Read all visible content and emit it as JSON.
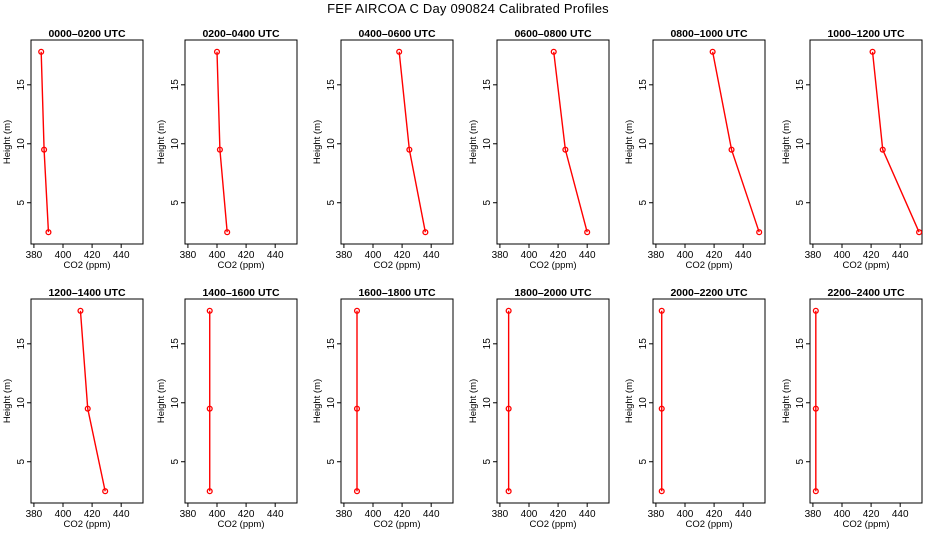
{
  "title": "FEF AIRCOA C  Day 090824  Calibrated Profiles",
  "chart_data": {
    "type": "line",
    "xlabel": "CO2 (ppm)",
    "ylabel": "Height (m)",
    "xlim": [
      378,
      455
    ],
    "ylim": [
      1.5,
      18.8
    ],
    "xticks": [
      "380",
      "400",
      "420",
      "440"
    ],
    "yticks": [
      "5",
      "10",
      "15"
    ],
    "heights": [
      17.8,
      9.5,
      2.5
    ],
    "series_color": "#ff0000",
    "panels": [
      {
        "title": "0000–0200 UTC",
        "values": [
          385,
          387,
          390
        ]
      },
      {
        "title": "0200–0400 UTC",
        "values": [
          400,
          402,
          407
        ]
      },
      {
        "title": "0400–0600 UTC",
        "values": [
          418,
          425,
          436
        ]
      },
      {
        "title": "0600–0800 UTC",
        "values": [
          417,
          425,
          440
        ]
      },
      {
        "title": "0800–1000 UTC",
        "values": [
          419,
          432,
          451
        ]
      },
      {
        "title": "1000–1200 UTC",
        "values": [
          421,
          428,
          453
        ]
      },
      {
        "title": "1200–1400 UTC",
        "values": [
          412,
          417,
          429
        ]
      },
      {
        "title": "1400–1600 UTC",
        "values": [
          395,
          395,
          395
        ]
      },
      {
        "title": "1600–1800 UTC",
        "values": [
          389,
          389,
          389
        ]
      },
      {
        "title": "1800–2000 UTC",
        "values": [
          386,
          386,
          386
        ]
      },
      {
        "title": "2000–2200 UTC",
        "values": [
          384,
          384,
          384
        ]
      },
      {
        "title": "2200–2400 UTC",
        "values": [
          382,
          382,
          382
        ]
      }
    ]
  }
}
